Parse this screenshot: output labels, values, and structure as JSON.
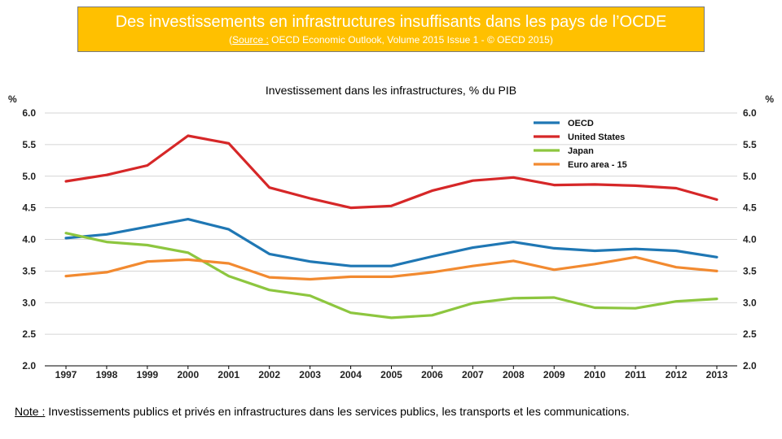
{
  "banner": {
    "title": "Des investissements en infrastructures insuffisants dans les pays de l’OCDE",
    "source_label": "Source :",
    "source_rest": " OECD Economic Outlook, Volume 2015 Issue 1 - © OECD 2015)",
    "source_open": "("
  },
  "note": {
    "label": "Note :",
    "text": " Investissements publics et privés en infrastructures dans les services publics, les transports et les communications."
  },
  "chart_data": {
    "type": "line",
    "title": "Investissement dans les infrastructures, % du PIB",
    "ylabel_left": "%",
    "ylabel_right": "%",
    "ylim": [
      2.0,
      6.0
    ],
    "yticks": [
      "2.0",
      "2.5",
      "3.0",
      "3.5",
      "4.0",
      "4.5",
      "5.0",
      "5.5",
      "6.0"
    ],
    "grid": true,
    "legend_position": "top-right",
    "categories": [
      "1997",
      "1998",
      "1999",
      "2000",
      "2001",
      "2002",
      "2003",
      "2004",
      "2005",
      "2006",
      "2007",
      "2008",
      "2009",
      "2010",
      "2011",
      "2012",
      "2013"
    ],
    "series": [
      {
        "name": "OECD",
        "color": "#1F77B4",
        "values": [
          4.02,
          4.08,
          4.2,
          4.32,
          4.16,
          3.77,
          3.65,
          3.58,
          3.58,
          3.73,
          3.87,
          3.96,
          3.86,
          3.82,
          3.85,
          3.82,
          3.72
        ]
      },
      {
        "name": "United States",
        "color": "#D62728",
        "values": [
          4.92,
          5.02,
          5.17,
          5.64,
          5.52,
          4.82,
          4.65,
          4.5,
          4.53,
          4.77,
          4.93,
          4.98,
          4.86,
          4.87,
          4.85,
          4.81,
          4.63
        ]
      },
      {
        "name": "Japan",
        "color": "#8DC63F",
        "values": [
          4.1,
          3.96,
          3.91,
          3.79,
          3.42,
          3.2,
          3.11,
          2.84,
          2.76,
          2.8,
          2.99,
          3.07,
          3.08,
          2.92,
          2.91,
          3.02,
          3.06
        ]
      },
      {
        "name": "Euro area - 15",
        "color": "#F28A30",
        "values": [
          3.42,
          3.48,
          3.65,
          3.68,
          3.62,
          3.4,
          3.37,
          3.41,
          3.41,
          3.48,
          3.58,
          3.66,
          3.52,
          3.61,
          3.72,
          3.56,
          3.5
        ]
      }
    ]
  }
}
